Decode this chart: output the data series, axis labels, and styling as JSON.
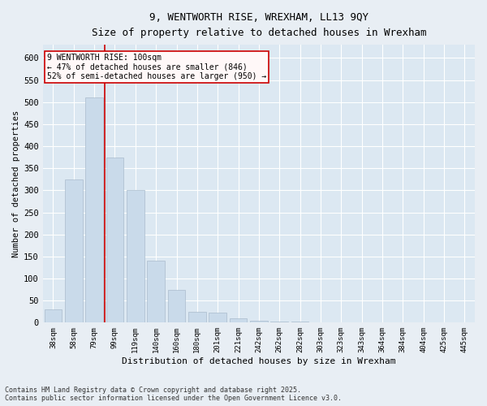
{
  "title_line1": "9, WENTWORTH RISE, WREXHAM, LL13 9QY",
  "title_line2": "Size of property relative to detached houses in Wrexham",
  "xlabel": "Distribution of detached houses by size in Wrexham",
  "ylabel": "Number of detached properties",
  "footer": "Contains HM Land Registry data © Crown copyright and database right 2025.\nContains public sector information licensed under the Open Government Licence v3.0.",
  "bar_color": "#c9daea",
  "bar_edge_color": "#aabccc",
  "background_color": "#dce8f2",
  "fig_background": "#e8eef4",
  "grid_color": "#ffffff",
  "categories": [
    "38sqm",
    "58sqm",
    "79sqm",
    "99sqm",
    "119sqm",
    "140sqm",
    "160sqm",
    "180sqm",
    "201sqm",
    "221sqm",
    "242sqm",
    "262sqm",
    "282sqm",
    "303sqm",
    "323sqm",
    "343sqm",
    "364sqm",
    "384sqm",
    "404sqm",
    "425sqm",
    "445sqm"
  ],
  "values": [
    30,
    325,
    510,
    375,
    300,
    140,
    75,
    25,
    23,
    10,
    5,
    3,
    2,
    1,
    1,
    0,
    0,
    1,
    0,
    0,
    1
  ],
  "ylim": [
    0,
    630
  ],
  "yticks": [
    0,
    50,
    100,
    150,
    200,
    250,
    300,
    350,
    400,
    450,
    500,
    550,
    600
  ],
  "property_label": "9 WENTWORTH RISE: 100sqm",
  "annotation_line1": "← 47% of detached houses are smaller (846)",
  "annotation_line2": "52% of semi-detached houses are larger (950) →",
  "vline_color": "#cc0000",
  "vline_x_index": 2.5
}
